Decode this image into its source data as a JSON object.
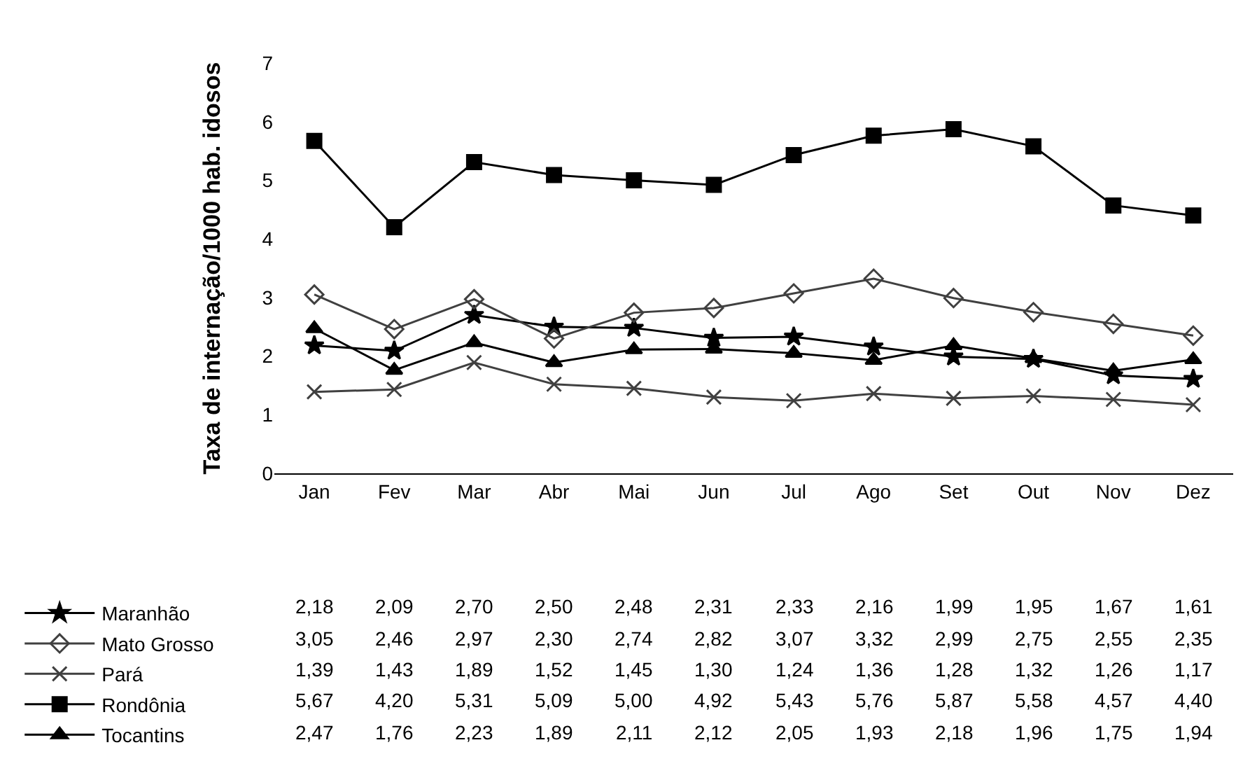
{
  "chart_data": {
    "type": "line",
    "ylabel": "Taxa de internação/1000 hab. idosos",
    "categories": [
      "Jan",
      "Fev",
      "Mar",
      "Abr",
      "Mai",
      "Jun",
      "Jul",
      "Ago",
      "Set",
      "Out",
      "Nov",
      "Dez"
    ],
    "ylim": [
      0,
      7
    ],
    "yticks": [
      0,
      1,
      2,
      3,
      4,
      5,
      6,
      7
    ],
    "legend": "bottom left",
    "series": [
      {
        "name": "Maranhão",
        "color": "#000000",
        "marker": "star",
        "values": [
          2.18,
          2.09,
          2.7,
          2.5,
          2.48,
          2.31,
          2.33,
          2.16,
          1.99,
          1.95,
          1.67,
          1.61
        ],
        "value_labels": [
          "2,18",
          "2,09",
          "2,70",
          "2,50",
          "2,48",
          "2,31",
          "2,33",
          "2,16",
          "1,99",
          "1,95",
          "1,67",
          "1,61"
        ]
      },
      {
        "name": "Mato Grosso",
        "color": "#404040",
        "marker": "diamond",
        "values": [
          3.05,
          2.46,
          2.97,
          2.3,
          2.74,
          2.82,
          3.07,
          3.32,
          2.99,
          2.75,
          2.55,
          2.35
        ],
        "value_labels": [
          "3,05",
          "2,46",
          "2,97",
          "2,30",
          "2,74",
          "2,82",
          "3,07",
          "3,32",
          "2,99",
          "2,75",
          "2,55",
          "2,35"
        ]
      },
      {
        "name": "Pará",
        "color": "#404040",
        "marker": "cross",
        "values": [
          1.39,
          1.43,
          1.89,
          1.52,
          1.45,
          1.3,
          1.24,
          1.36,
          1.28,
          1.32,
          1.26,
          1.17
        ],
        "value_labels": [
          "1,39",
          "1,43",
          "1,89",
          "1,52",
          "1,45",
          "1,30",
          "1,24",
          "1,36",
          "1,28",
          "1,32",
          "1,26",
          "1,17"
        ]
      },
      {
        "name": "Rondônia",
        "color": "#000000",
        "marker": "square",
        "values": [
          5.67,
          4.2,
          5.31,
          5.09,
          5.0,
          4.92,
          5.43,
          5.76,
          5.87,
          5.58,
          4.57,
          4.4
        ],
        "value_labels": [
          "5,67",
          "4,20",
          "5,31",
          "5,09",
          "5,00",
          "4,92",
          "5,43",
          "5,76",
          "5,87",
          "5,58",
          "4,57",
          "4,40"
        ]
      },
      {
        "name": "Tocantins",
        "color": "#000000",
        "marker": "triangle",
        "values": [
          2.47,
          1.76,
          2.23,
          1.89,
          2.11,
          2.12,
          2.05,
          1.93,
          2.18,
          1.96,
          1.75,
          1.94
        ],
        "value_labels": [
          "2,47",
          "1,76",
          "2,23",
          "1,89",
          "2,11",
          "2,12",
          "2,05",
          "1,93",
          "2,18",
          "1,96",
          "1,75",
          "1,94"
        ]
      }
    ]
  }
}
